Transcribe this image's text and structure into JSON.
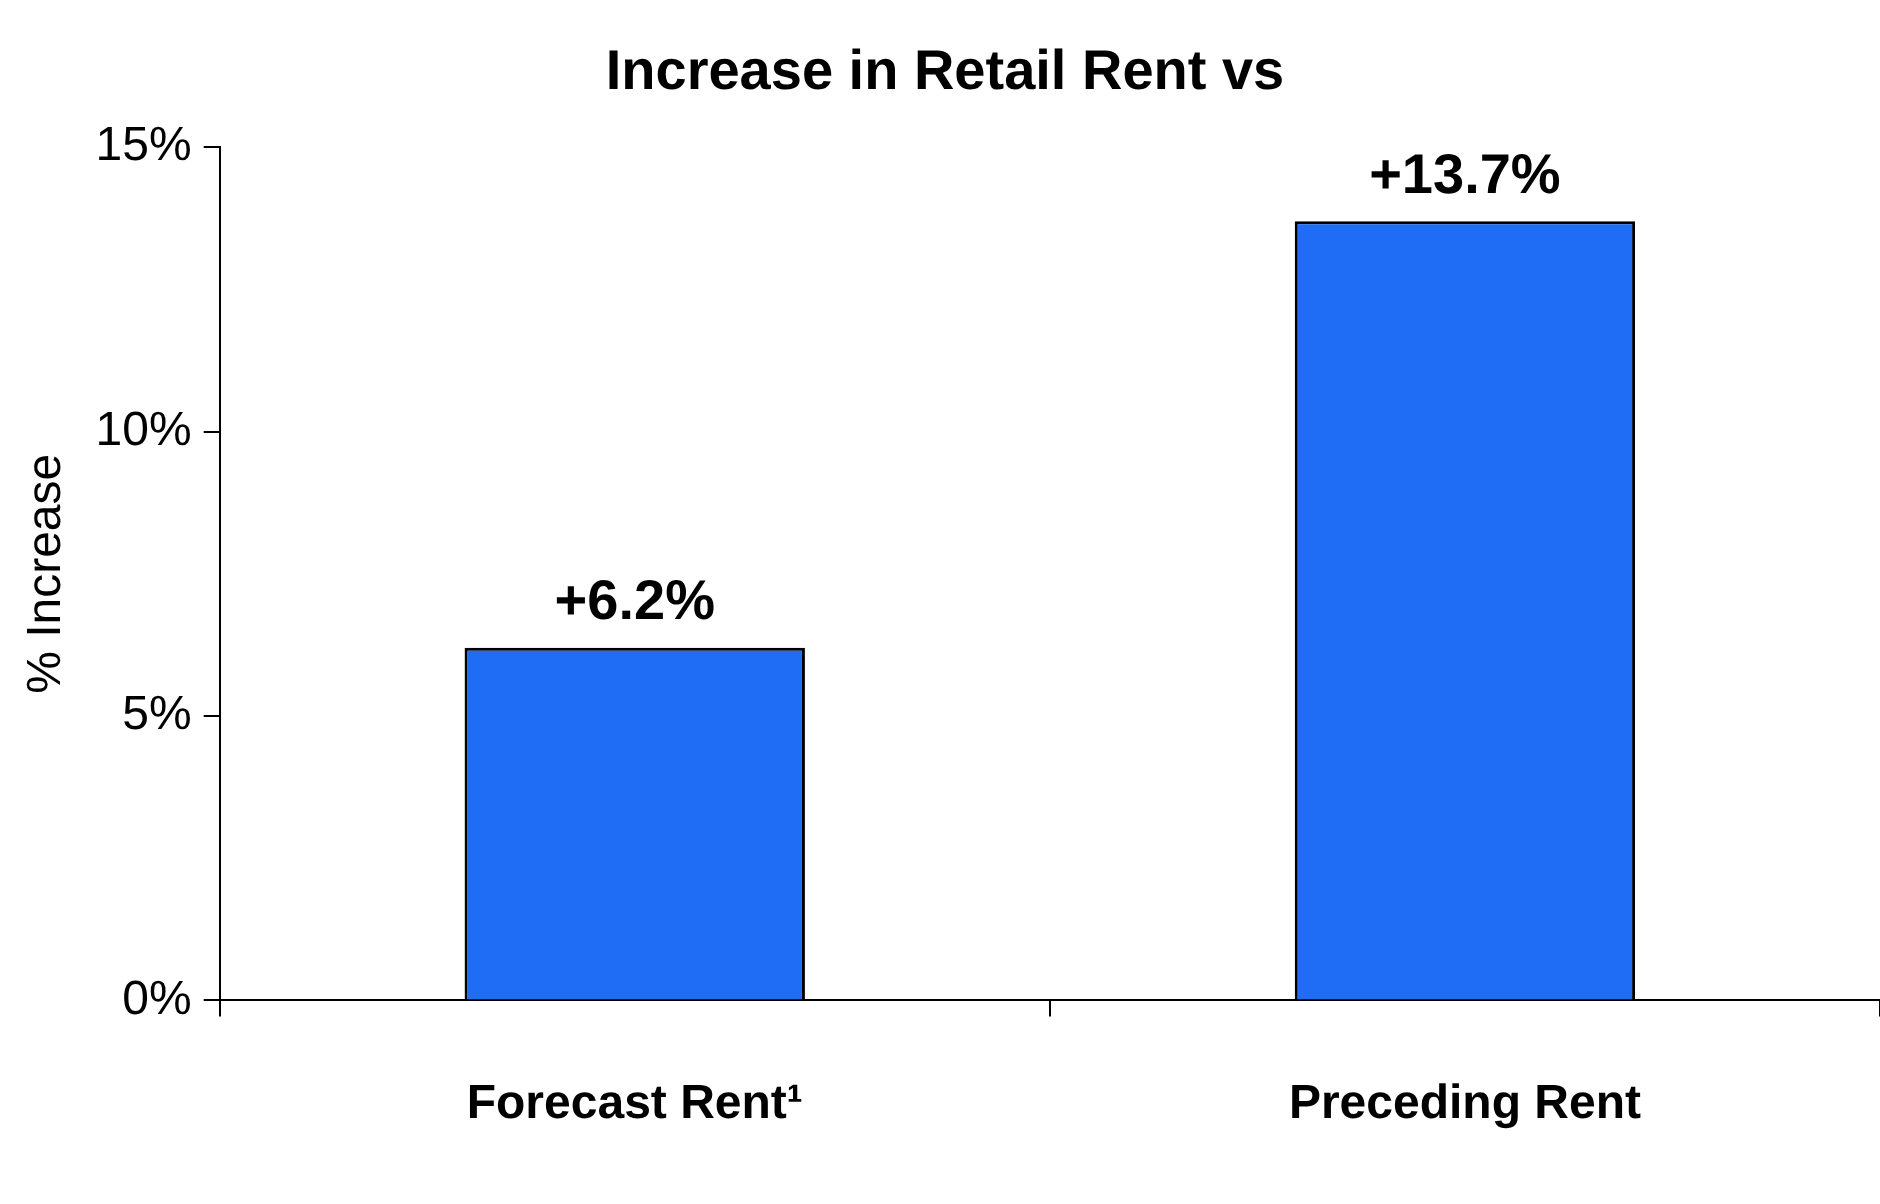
{
  "chart_data": {
    "type": "bar",
    "title": "Increase in Retail Rent vs",
    "ylabel": "% Increase",
    "categories": [
      "Forecast Rent¹",
      "Preceding Rent"
    ],
    "values": [
      6.2,
      13.7
    ],
    "value_labels": [
      "+6.2%",
      "+13.7%"
    ],
    "color": "#1f6cf5",
    "ylim": [
      0,
      15
    ],
    "yticks": [
      {
        "value": 0,
        "label": "0%"
      },
      {
        "value": 5,
        "label": "5%"
      },
      {
        "value": 10,
        "label": "10%"
      },
      {
        "value": 15,
        "label": "15%"
      }
    ],
    "grid": false,
    "legend": false
  }
}
